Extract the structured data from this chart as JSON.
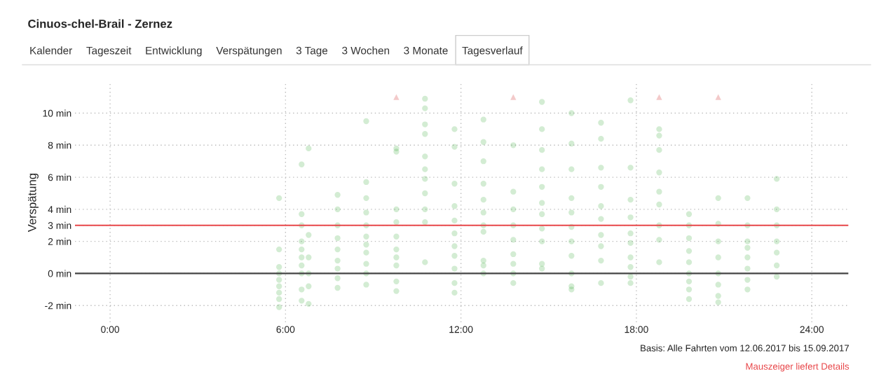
{
  "chart_data": {
    "type": "scatter",
    "title": "Cinuos-chel-Brail - Zernez",
    "ylabel": "Verspätung",
    "annotations": [
      "Kalender",
      "Tageszeit",
      "Entwicklung",
      "Verspätungen",
      "3 Tage",
      "3 Wochen",
      "3 Monate",
      "Tagesverlauf",
      "Basis: Alle Fahrten vom 12.06.2017 bis 15.09.2017",
      "Mauszeiger liefert Details"
    ],
    "series": [
      {
        "color": "#22a022",
        "marker": "circle",
        "x": [
          5.78,
          5.78,
          5.78,
          5.78,
          5.78,
          5.78,
          5.78,
          5.78,
          5.78,
          6.55,
          6.55,
          6.55,
          6.55,
          6.55,
          6.55,
          6.55,
          6.55,
          6.55,
          6.55,
          6.79,
          6.79,
          6.79,
          6.79,
          6.79,
          6.79,
          7.78,
          7.78,
          7.78,
          7.78,
          7.78,
          7.78,
          7.78,
          7.78,
          7.78,
          8.76,
          8.76,
          8.76,
          8.76,
          8.76,
          8.76,
          8.76,
          8.76,
          8.76,
          8.76,
          8.76,
          9.79,
          9.79,
          9.79,
          9.79,
          9.79,
          9.79,
          9.79,
          9.79,
          9.79,
          9.79,
          10.77,
          10.77,
          10.77,
          10.77,
          10.77,
          10.77,
          10.77,
          10.77,
          10.77,
          10.77,
          10.77,
          11.78,
          11.78,
          11.78,
          11.78,
          11.78,
          11.78,
          11.78,
          11.78,
          11.78,
          11.78,
          11.78,
          12.77,
          12.77,
          12.77,
          12.77,
          12.77,
          12.77,
          12.77,
          12.77,
          12.77,
          12.77,
          12.77,
          13.79,
          13.79,
          13.79,
          13.79,
          13.79,
          13.79,
          13.79,
          13.79,
          13.79,
          14.77,
          14.77,
          14.77,
          14.77,
          14.77,
          14.77,
          14.77,
          14.77,
          14.77,
          14.77,
          14.77,
          15.78,
          15.78,
          15.78,
          15.78,
          15.78,
          15.78,
          15.78,
          15.78,
          15.78,
          15.78,
          15.78,
          16.79,
          16.79,
          16.79,
          16.79,
          16.79,
          16.79,
          16.79,
          16.79,
          16.79,
          16.79,
          17.8,
          17.8,
          17.8,
          17.8,
          17.8,
          17.8,
          17.8,
          17.8,
          17.8,
          17.8,
          18.78,
          18.78,
          18.78,
          18.78,
          18.78,
          18.78,
          18.78,
          18.78,
          18.78,
          19.8,
          19.8,
          19.8,
          19.8,
          19.8,
          19.8,
          19.8,
          19.8,
          19.8,
          20.8,
          20.8,
          20.8,
          20.8,
          20.8,
          20.8,
          20.8,
          20.8,
          21.8,
          21.8,
          21.8,
          21.8,
          21.8,
          21.8,
          21.8,
          21.8,
          22.8,
          22.8,
          22.8,
          22.8,
          22.8,
          22.8,
          22.8
        ],
        "values": [
          -2.1,
          -1.6,
          -1.2,
          -0.8,
          -0.4,
          0,
          0.4,
          1.5,
          4.7,
          6.8,
          3.7,
          3.0,
          2.0,
          1.5,
          1.0,
          0.5,
          0,
          -1.0,
          -1.7,
          7.8,
          2.4,
          1.0,
          0,
          -0.8,
          -1.9,
          4.9,
          4.0,
          3.0,
          2.2,
          1.5,
          0.8,
          0.3,
          -0.3,
          -0.9,
          9.5,
          5.7,
          4.7,
          3.8,
          3.0,
          2.3,
          1.8,
          1.3,
          0.6,
          0,
          -0.7,
          7.8,
          7.6,
          4.0,
          3.2,
          2.3,
          1.5,
          1.0,
          0.5,
          -0.5,
          -1.1,
          10.9,
          10.3,
          9.3,
          8.7,
          7.3,
          6.5,
          5.9,
          5.0,
          4.0,
          3.2,
          0.7,
          9.0,
          7.9,
          5.6,
          4.2,
          3.3,
          2.5,
          1.7,
          1.1,
          0.3,
          -0.6,
          -1.2,
          9.6,
          8.2,
          7.0,
          5.6,
          4.6,
          3.8,
          3.0,
          2.6,
          0.8,
          0.5,
          0,
          8.0,
          5.1,
          4.0,
          3.0,
          2.1,
          1.2,
          0.6,
          0,
          -0.6,
          10.7,
          9.0,
          7.7,
          6.5,
          5.4,
          4.4,
          3.7,
          2.8,
          2.0,
          0.6,
          0.3,
          10.0,
          8.1,
          6.5,
          4.7,
          3.8,
          2.9,
          2.0,
          1.1,
          0,
          -0.8,
          -1.0,
          9.4,
          8.4,
          6.6,
          5.4,
          4.2,
          3.4,
          2.4,
          1.7,
          0.8,
          -0.6,
          10.8,
          6.6,
          4.6,
          3.5,
          2.5,
          1.9,
          1.0,
          0.4,
          -0.2,
          -0.6,
          9.0,
          8.6,
          7.7,
          6.3,
          5.1,
          4.3,
          3.0,
          2.1,
          0.7,
          3.7,
          3.0,
          2.2,
          1.4,
          0.7,
          0,
          -0.5,
          -1.0,
          -1.6,
          4.7,
          3.1,
          2.0,
          1.0,
          0,
          -0.7,
          -1.4,
          -1.8,
          4.7,
          3.0,
          2.0,
          1.6,
          1.0,
          0.3,
          -0.4,
          -1.0,
          5.9,
          4.0,
          3.0,
          2.0,
          1.3,
          0.5,
          -0.2
        ]
      },
      {
        "color": "#f2c4c4",
        "marker": "triangle",
        "x": [
          9.79,
          13.79,
          18.78,
          20.8
        ],
        "values": [
          11.0,
          11.0,
          11.0,
          11.0
        ]
      }
    ],
    "xlim": [
      -1.2,
      25.25
    ],
    "ylim": [
      -3.05,
      11.9
    ],
    "xticks": [
      {
        "value": 0,
        "label": "0:00"
      },
      {
        "value": 6,
        "label": "6:00"
      },
      {
        "value": 12,
        "label": "12:00"
      },
      {
        "value": 18,
        "label": "18:00"
      },
      {
        "value": 24,
        "label": "24:00"
      }
    ],
    "yticks": [
      {
        "value": -2,
        "label": "-2 min"
      },
      {
        "value": 0,
        "label": "0 min"
      },
      {
        "value": 2,
        "label": "2 min"
      },
      {
        "value": 3,
        "label": "3 min"
      },
      {
        "value": 4,
        "label": "4 min"
      },
      {
        "value": 6,
        "label": "6 min"
      },
      {
        "value": 8,
        "label": "8 min"
      },
      {
        "value": 10,
        "label": "10 min"
      }
    ],
    "ref_lines": [
      {
        "axis": "y",
        "value": 3,
        "color": "#e8474a"
      },
      {
        "axis": "y",
        "value": 0,
        "color": "#444444"
      }
    ],
    "grid": true,
    "legend": false
  }
}
